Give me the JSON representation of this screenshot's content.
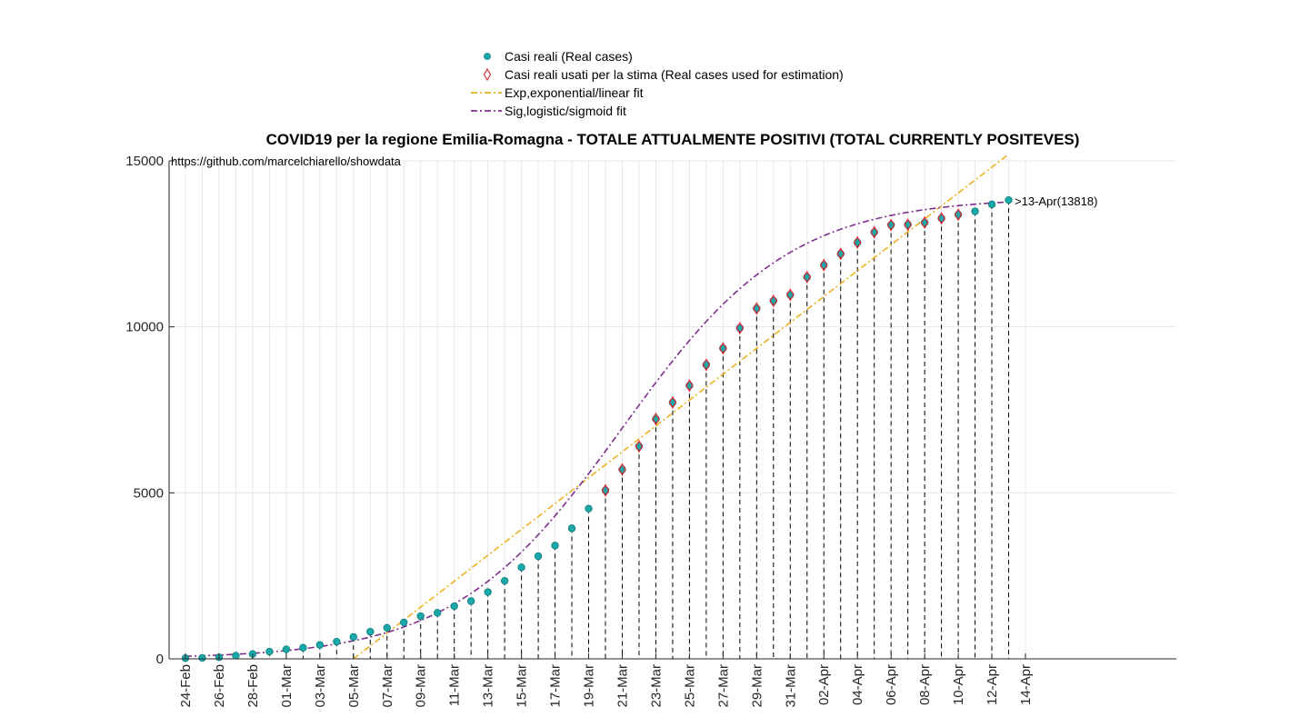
{
  "chart_data": {
    "type": "scatter",
    "title": "COVID19 per la regione Emilia-Romagna - TOTALE ATTUALMENTE POSITIVI (TOTAL CURRENTLY POSITEVES)",
    "xlabel": "",
    "ylabel": "",
    "source_text": "https://github.com/marcelchiarello/showdata",
    "annotation": ">13-Apr(13818)",
    "ylim": [
      0,
      15000
    ],
    "y_ticks": [
      "0",
      "5000",
      "10000",
      "15000"
    ],
    "x_ticks": [
      "24-Feb",
      "26-Feb",
      "28-Feb",
      "01-Mar",
      "03-Mar",
      "05-Mar",
      "07-Mar",
      "09-Mar",
      "11-Mar",
      "13-Mar",
      "15-Mar",
      "17-Mar",
      "19-Mar",
      "21-Mar",
      "23-Mar",
      "25-Mar",
      "27-Mar",
      "29-Mar",
      "31-Mar",
      "02-Apr",
      "04-Apr",
      "06-Apr",
      "08-Apr",
      "10-Apr",
      "12-Apr",
      "14-Apr"
    ],
    "xlim": [
      "2020-02-24",
      "2020-04-14"
    ],
    "grid": true,
    "legend_position": "top-center",
    "dates": [
      "2020-02-24",
      "2020-02-25",
      "2020-02-26",
      "2020-02-27",
      "2020-02-28",
      "2020-02-29",
      "2020-03-01",
      "2020-03-02",
      "2020-03-03",
      "2020-03-04",
      "2020-03-05",
      "2020-03-06",
      "2020-03-07",
      "2020-03-08",
      "2020-03-09",
      "2020-03-10",
      "2020-03-11",
      "2020-03-12",
      "2020-03-13",
      "2020-03-14",
      "2020-03-15",
      "2020-03-16",
      "2020-03-17",
      "2020-03-18",
      "2020-03-19",
      "2020-03-20",
      "2020-03-21",
      "2020-03-22",
      "2020-03-23",
      "2020-03-24",
      "2020-03-25",
      "2020-03-26",
      "2020-03-27",
      "2020-03-28",
      "2020-03-29",
      "2020-03-30",
      "2020-03-31",
      "2020-04-01",
      "2020-04-02",
      "2020-04-03",
      "2020-04-04",
      "2020-04-05",
      "2020-04-06",
      "2020-04-07",
      "2020-04-08",
      "2020-04-09",
      "2020-04-10",
      "2020-04-11",
      "2020-04-12",
      "2020-04-13"
    ],
    "series": [
      {
        "name": "Casi reali (Real cases)",
        "marker": "filled-circle",
        "color": "#1aa8a8",
        "values": [
          18,
          26,
          47,
          97,
          145,
          217,
          285,
          335,
          420,
          516,
          658,
          817,
          935,
          1097,
          1286,
          1386,
          1586,
          1739,
          2011,
          2349,
          2756,
          3093,
          3412,
          3931,
          4525,
          5074,
          5702,
          6401,
          7224,
          7724,
          8231,
          8858,
          9354,
          9963,
          10554,
          10784,
          10965,
          11500,
          11860,
          12200,
          12540,
          12850,
          13070,
          13080,
          13140,
          13270,
          13380,
          13480,
          13690,
          13818
        ]
      },
      {
        "name": "Casi reali usati per la stima (Real cases used for estimation)",
        "marker": "diamond",
        "color": "#e8202a",
        "start_index": 25,
        "end_index": 46
      },
      {
        "name": "Exp,exponential/linear fit",
        "line": "dash-dot",
        "color": "#edb120",
        "points": [
          [
            "2020-03-05",
            0
          ],
          [
            "2020-04-13",
            15200
          ]
        ]
      },
      {
        "name": "Sig,logistic/sigmoid fit",
        "line": "dash-dot",
        "color": "#7e2f8e",
        "logistic": {
          "K": 13900,
          "r": 0.2,
          "midpoint": "2020-03-21"
        }
      }
    ]
  }
}
